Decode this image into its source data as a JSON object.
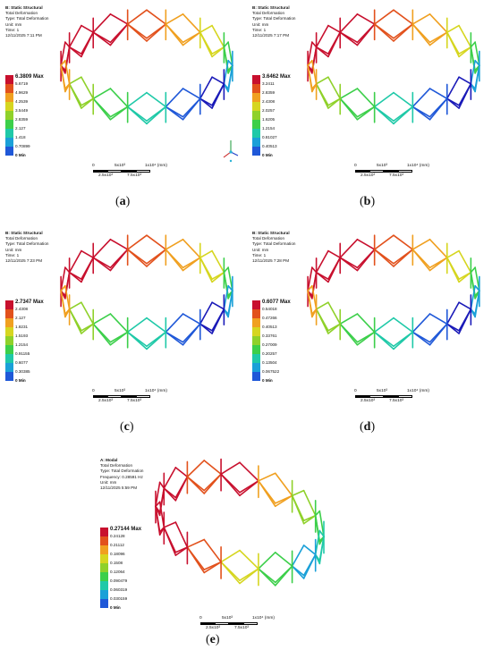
{
  "panels": [
    {
      "id": "a",
      "caption": "a",
      "info": [
        "B: Static Structural",
        "Total Deformation",
        "Type: Total Deformation",
        "Unit: mm",
        "Time: 1",
        "12/11/2025 7:11 PM"
      ],
      "legend": [
        "6.3809 Max",
        "5.6719",
        "4.9629",
        "4.2539",
        "3.5449",
        "2.8359",
        "2.127",
        "1.418",
        "0.70899",
        "0 Min"
      ]
    },
    {
      "id": "b",
      "caption": "b",
      "info": [
        "B: Static Structural",
        "Total Deformation",
        "Type: Total Deformation",
        "Unit: mm",
        "Time: 1",
        "12/11/2025 7:17 PM"
      ],
      "legend": [
        "3.6462 Max",
        "3.2411",
        "2.8359",
        "2.4308",
        "2.0257",
        "1.6205",
        "1.2154",
        "0.81027",
        "0.40513",
        "0 Min"
      ]
    },
    {
      "id": "c",
      "caption": "c",
      "info": [
        "B: Static Structural",
        "Total Deformation",
        "Type: Total Deformation",
        "Unit: mm",
        "Time: 1",
        "12/11/2025 7:23 PM"
      ],
      "legend": [
        "2.7347 Max",
        "2.4308",
        "2.127",
        "1.8231",
        "1.5193",
        "1.2154",
        "0.91155",
        "0.6077",
        "0.30385",
        "0 Min"
      ]
    },
    {
      "id": "d",
      "caption": "d",
      "info": [
        "B: Static Structural",
        "Total Deformation",
        "Type: Total Deformation",
        "Unit: mm",
        "Time: 1",
        "12/11/2025 7:28 PM"
      ],
      "legend": [
        "0.6077 Max",
        "0.54018",
        "0.47266",
        "0.40513",
        "0.33761",
        "0.27009",
        "0.20257",
        "0.13504",
        "0.067522",
        "0 Min"
      ]
    },
    {
      "id": "e",
      "caption": "e",
      "info": [
        "A: Modal",
        "Total Deformation",
        "Type: Total Deformation",
        "Frequency: 0.28591 Hz",
        "Unit: mm",
        "12/11/2025 5:59 PM"
      ],
      "legend": [
        "0.27144 Max",
        "0.24128",
        "0.21112",
        "0.18096",
        "0.1508",
        "0.12064",
        "0.090479",
        "0.060319",
        "0.030159",
        "0 Min"
      ]
    }
  ],
  "scale": {
    "top": [
      "0",
      "5x10³",
      "1x10⁴ (mm)"
    ],
    "bottom": [
      "2.5x10³",
      "7.5x10³"
    ]
  },
  "legend_colors": [
    "#c8102e",
    "#e2511c",
    "#f0a020",
    "#d6d620",
    "#8fd12a",
    "#3ccf4a",
    "#1fc9a8",
    "#1aa0d8",
    "#1f58d8",
    "#1a1ab8"
  ]
}
